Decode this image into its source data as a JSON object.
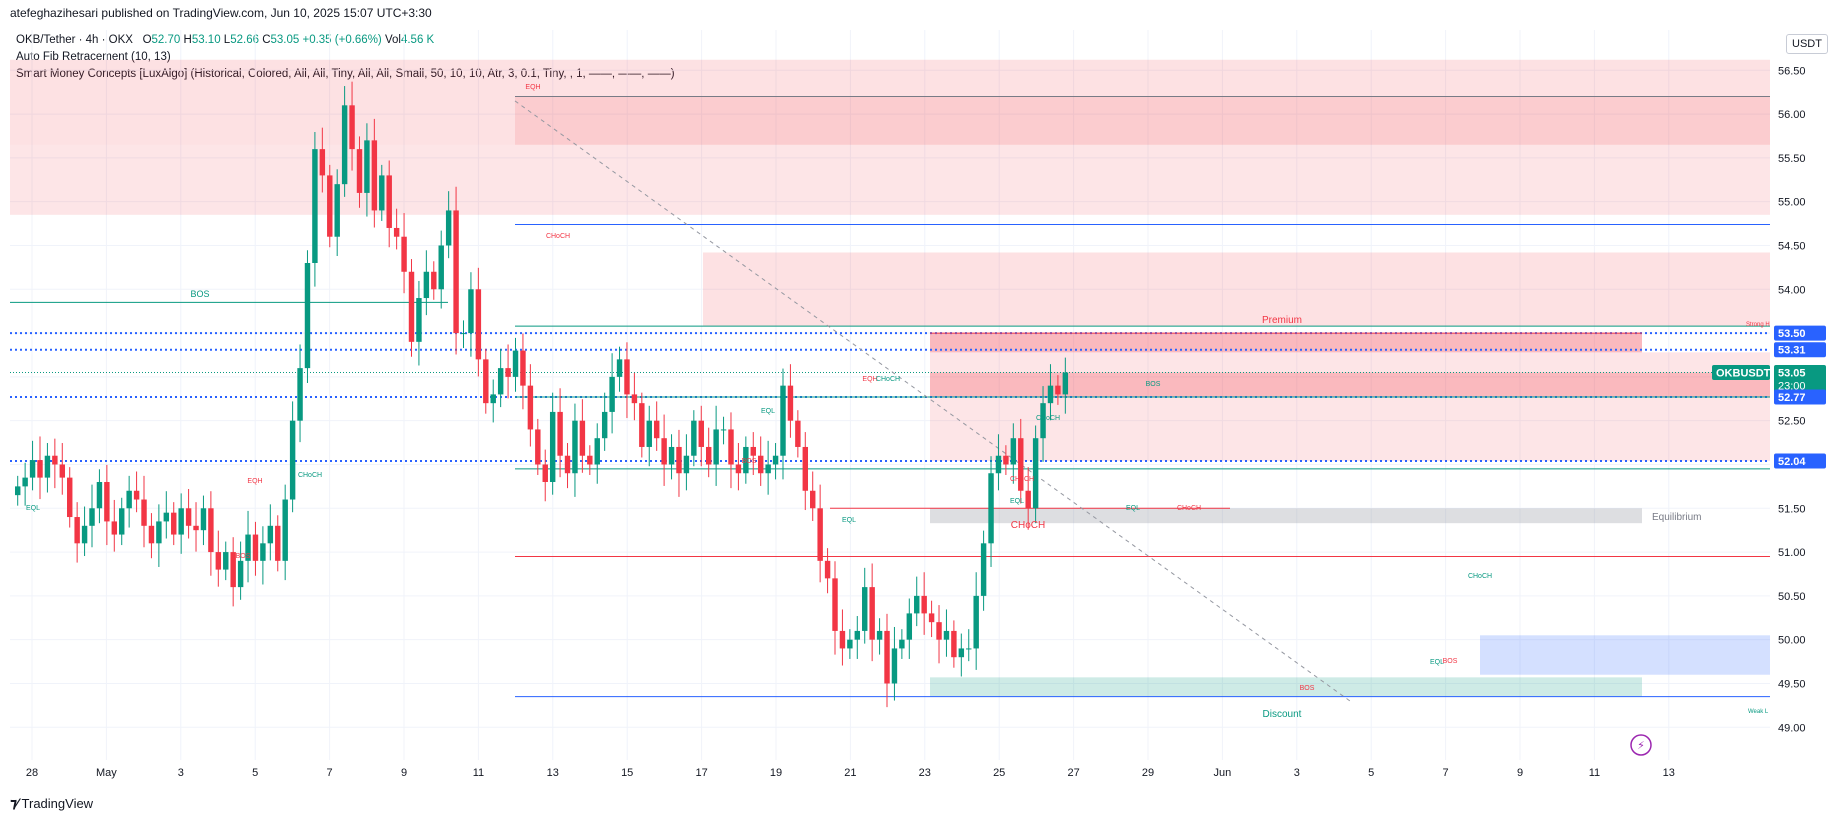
{
  "header": {
    "published_by": "atefeghazihesari published on TradingView.com, Jun 10, 2025 15:07 UTC+3:30",
    "symbol_info": "OKB/Tether · 4h · OKX",
    "o_label": "O",
    "o_value": "52.70",
    "h_label": "H",
    "h_value": "53.10",
    "l_label": "L",
    "l_value": "52.66",
    "c_label": "C",
    "c_value": "53.05",
    "change": "+0.35 (+0.66%)",
    "vol_label": "Vol",
    "vol_value": "4.56 K",
    "indicator1": "Auto Fib Retracement (10, 13)",
    "indicator2": "Smart Money Concepts [LuxAlgo] (Historical, Colored, All, All, Tiny, All, All, Small, 50, 10, 10, Atr, 3, 0.1, Tiny, , 1, ——, ——, ——)",
    "currency": "USDT",
    "brand": "TradingView",
    "brand_icon": "tradingview-logo"
  },
  "chart_data": {
    "type": "candlestick",
    "title": "OKB/Tether · 4h · OKX",
    "ylim": [
      48.8,
      56.8
    ],
    "y_ticks": [
      "56.50",
      "56.00",
      "55.50",
      "55.00",
      "54.50",
      "54.00",
      "53.50",
      "53.00",
      "52.50",
      "52.00",
      "51.50",
      "51.00",
      "50.50",
      "50.00",
      "49.50",
      "49.00"
    ],
    "x_ticks": [
      {
        "label": "28",
        "x": 0
      },
      {
        "label": "May",
        "x": 6
      },
      {
        "label": "3",
        "x": 12
      },
      {
        "label": "5",
        "x": 18
      },
      {
        "label": "7",
        "x": 24
      },
      {
        "label": "9",
        "x": 30
      },
      {
        "label": "11",
        "x": 36
      },
      {
        "label": "13",
        "x": 42
      },
      {
        "label": "15",
        "x": 48
      },
      {
        "label": "17",
        "x": 54
      },
      {
        "label": "19",
        "x": 60
      },
      {
        "label": "21",
        "x": 66
      },
      {
        "label": "23",
        "x": 72
      },
      {
        "label": "25",
        "x": 78
      },
      {
        "label": "27",
        "x": 84
      },
      {
        "label": "29",
        "x": 90
      },
      {
        "label": "Jun",
        "x": 96
      },
      {
        "label": "3",
        "x": 102
      },
      {
        "label": "5",
        "x": 108
      },
      {
        "label": "7",
        "x": 114
      },
      {
        "label": "9",
        "x": 120
      },
      {
        "label": "11",
        "x": 126
      },
      {
        "label": "13",
        "x": 132
      }
    ],
    "closes": [
      51.75,
      51.85,
      52.05,
      51.85,
      52.1,
      52.0,
      51.85,
      51.4,
      51.1,
      51.3,
      51.5,
      51.8,
      51.35,
      51.2,
      51.5,
      51.7,
      51.6,
      51.3,
      51.1,
      51.35,
      51.45,
      51.2,
      51.5,
      51.3,
      51.25,
      51.5,
      51.0,
      50.8,
      51.0,
      50.6,
      50.9,
      51.2,
      50.9,
      51.1,
      51.3,
      50.9,
      51.6,
      52.5,
      53.1,
      54.3,
      55.6,
      55.3,
      54.6,
      55.2,
      56.1,
      55.6,
      55.1,
      55.7,
      54.9,
      55.3,
      54.7,
      54.6,
      54.2,
      53.4,
      53.9,
      54.2,
      54.0,
      54.5,
      54.9,
      53.5,
      53.5,
      54.0,
      53.2,
      52.7,
      52.8,
      53.1,
      53.0,
      53.3,
      52.9,
      52.4,
      52.0,
      51.8,
      52.6,
      52.1,
      51.9,
      52.5,
      52.1,
      52.0,
      52.3,
      52.6,
      53.0,
      53.2,
      52.8,
      52.7,
      52.2,
      52.5,
      52.3,
      52.0,
      52.2,
      51.9,
      52.1,
      52.5,
      52.2,
      52.0,
      52.4,
      52.4,
      52.0,
      51.9,
      52.2,
      52.1,
      51.9,
      52.0,
      52.1,
      52.9,
      52.5,
      52.2,
      51.7,
      51.5,
      50.9,
      50.7,
      50.1,
      49.9,
      50.0,
      50.1,
      50.6,
      50.0,
      50.1,
      49.5,
      49.9,
      50.0,
      50.3,
      50.5,
      50.3,
      50.2,
      50.0,
      50.1,
      49.8,
      49.9,
      49.9,
      50.5,
      51.1,
      51.9,
      52.1,
      52.0,
      52.3,
      51.7,
      51.5,
      52.3,
      52.7,
      52.9,
      52.8,
      53.05
    ]
  },
  "annotations": {
    "premium": "Premium",
    "discount": "Discount",
    "equilibrium": "Equilibrium",
    "strong_high": "Strong H",
    "weak_low": "Weak L",
    "bos_left": "BOS",
    "choch_big": "CHoCH",
    "small_labels": [
      {
        "text": "EQH",
        "color": "#f23645"
      },
      {
        "text": "CHoCH",
        "color": "#f23645"
      },
      {
        "text": "EQL",
        "color": "#089981"
      },
      {
        "text": "EQH",
        "color": "#f23645"
      },
      {
        "text": "CHoCH",
        "color": "#089981"
      },
      {
        "text": "BOS",
        "color": "#f23645"
      },
      {
        "text": "EQL",
        "color": "#089981"
      },
      {
        "text": "BOS",
        "color": "#f23645"
      },
      {
        "text": "EQH",
        "color": "#f23645"
      },
      {
        "text": "CHoCH",
        "color": "#089981"
      },
      {
        "text": "EQL",
        "color": "#089981"
      },
      {
        "text": "CHoCH",
        "color": "#089981"
      },
      {
        "text": "CHoCH",
        "color": "#f23645"
      },
      {
        "text": "EQL",
        "color": "#089981"
      },
      {
        "text": "BOS",
        "color": "#089981"
      },
      {
        "text": "EQL",
        "color": "#089981"
      },
      {
        "text": "CHoCH",
        "color": "#f23645"
      },
      {
        "text": "BOS",
        "color": "#f23645"
      },
      {
        "text": "EQL",
        "color": "#089981"
      },
      {
        "text": "BOS",
        "color": "#f23645"
      },
      {
        "text": "CHoCH",
        "color": "#089981"
      }
    ]
  },
  "price_tags": {
    "p1": "53.50",
    "p2": "53.31",
    "symbol": "OKBUSDT",
    "last": "53.05",
    "countdown": "23:00",
    "p3": "52.77",
    "p4": "52.04"
  },
  "colors": {
    "up": "#089981",
    "down": "#f23645",
    "blue": "#2962ff",
    "grid": "#f0f3fa"
  }
}
